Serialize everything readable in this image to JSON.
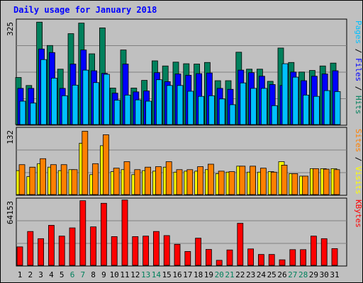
{
  "chart_title": "Daily usage for January 2018",
  "colors": {
    "background": "#c0c0c0",
    "hits": "#00805c",
    "files": "#0000ff",
    "pages": "#00c0ff",
    "visits": "#ffff00",
    "sites": "#ff8000",
    "kbytes": "#ff0000",
    "weekday_label": "#000000",
    "weekend_label": "#00805c",
    "title": "#0000ff"
  },
  "chart_data": [
    {
      "type": "bar",
      "panel": "top",
      "ymax_label": "325",
      "ylim": [
        0,
        325
      ],
      "side_labels": [
        {
          "text": "Pages",
          "color": "#00c0ff"
        },
        {
          "text": " / ",
          "color": "#000000"
        },
        {
          "text": "Files",
          "color": "#0000ff"
        },
        {
          "text": " / ",
          "color": "#000000"
        },
        {
          "text": "Hits",
          "color": "#00805c"
        }
      ],
      "categories": [
        "1",
        "2",
        "3",
        "4",
        "5",
        "6",
        "7",
        "8",
        "9",
        "10",
        "11",
        "12",
        "13",
        "14",
        "15",
        "16",
        "17",
        "18",
        "19",
        "20",
        "21",
        "22",
        "23",
        "24",
        "25",
        "26",
        "27",
        "28",
        "29",
        "30",
        "31"
      ],
      "series": [
        {
          "key": "hits",
          "values": [
            147,
            122,
            320,
            247,
            173,
            284,
            317,
            221,
            302,
            114,
            233,
            114,
            138,
            199,
            183,
            195,
            190,
            189,
            194,
            137,
            137,
            226,
            173,
            173,
            135,
            239,
            194,
            164,
            169,
            183,
            192
          ]
        },
        {
          "key": "files",
          "values": [
            113,
            113,
            236,
            225,
            113,
            189,
            233,
            168,
            160,
            98,
            189,
            102,
            105,
            162,
            134,
            158,
            154,
            159,
            161,
            113,
            110,
            170,
            162,
            151,
            125,
            122,
            164,
            137,
            151,
            158,
            168
          ]
        },
        {
          "key": "pages",
          "values": [
            73,
            67,
            203,
            145,
            90,
            123,
            170,
            131,
            157,
            76,
            92,
            77,
            73,
            140,
            122,
            122,
            104,
            88,
            90,
            80,
            62,
            130,
            113,
            113,
            59,
            190,
            148,
            92,
            88,
            106,
            103
          ]
        }
      ]
    },
    {
      "type": "bar",
      "panel": "middle",
      "ymax_label": "132",
      "ylim": [
        0,
        132
      ],
      "side_labels": [
        {
          "text": "Sites",
          "color": "#ff8000"
        },
        {
          "text": " / ",
          "color": "#000000"
        },
        {
          "text": "Visits",
          "color": "#ffff00"
        }
      ],
      "categories": [
        "1",
        "2",
        "3",
        "4",
        "5",
        "6",
        "7",
        "8",
        "9",
        "10",
        "11",
        "12",
        "13",
        "14",
        "15",
        "16",
        "17",
        "18",
        "19",
        "20",
        "21",
        "22",
        "23",
        "24",
        "25",
        "26",
        "27",
        "28",
        "29",
        "30",
        "31"
      ],
      "series": [
        {
          "key": "visits",
          "values": [
            48,
            36,
            62,
            55,
            48,
            50,
            103,
            40,
            98,
            46,
            50,
            40,
            48,
            47,
            55,
            45,
            47,
            47,
            50,
            42,
            45,
            57,
            45,
            45,
            46,
            66,
            42,
            37,
            52,
            52,
            52
          ]
        },
        {
          "key": "sites",
          "values": [
            60,
            55,
            72,
            60,
            60,
            50,
            127,
            62,
            120,
            53,
            66,
            50,
            55,
            56,
            66,
            50,
            50,
            56,
            61,
            47,
            46,
            57,
            57,
            53,
            45,
            59,
            42,
            37,
            52,
            51,
            50
          ]
        }
      ]
    },
    {
      "type": "bar",
      "panel": "bottom",
      "ymax_label": "64153",
      "ylim": [
        0,
        64153
      ],
      "side_labels": [
        {
          "text": "KBytes",
          "color": "#ff0000"
        }
      ],
      "categories": [
        "1",
        "2",
        "3",
        "4",
        "5",
        "6",
        "7",
        "8",
        "9",
        "10",
        "11",
        "12",
        "13",
        "14",
        "15",
        "16",
        "17",
        "18",
        "19",
        "20",
        "21",
        "22",
        "23",
        "24",
        "25",
        "26",
        "27",
        "28",
        "29",
        "30",
        "31"
      ],
      "weekend_days": [
        "6",
        "7",
        "13",
        "14",
        "20",
        "21",
        "27",
        "28"
      ],
      "series": [
        {
          "key": "kbytes",
          "values": [
            18000,
            33000,
            26000,
            39000,
            28500,
            36500,
            63000,
            37500,
            60500,
            28000,
            63700,
            28000,
            28500,
            33000,
            29000,
            20500,
            13500,
            26500,
            15500,
            4900,
            15000,
            41000,
            16000,
            10600,
            10600,
            5400,
            15300,
            15300,
            28500,
            26000,
            16300
          ]
        }
      ]
    }
  ]
}
